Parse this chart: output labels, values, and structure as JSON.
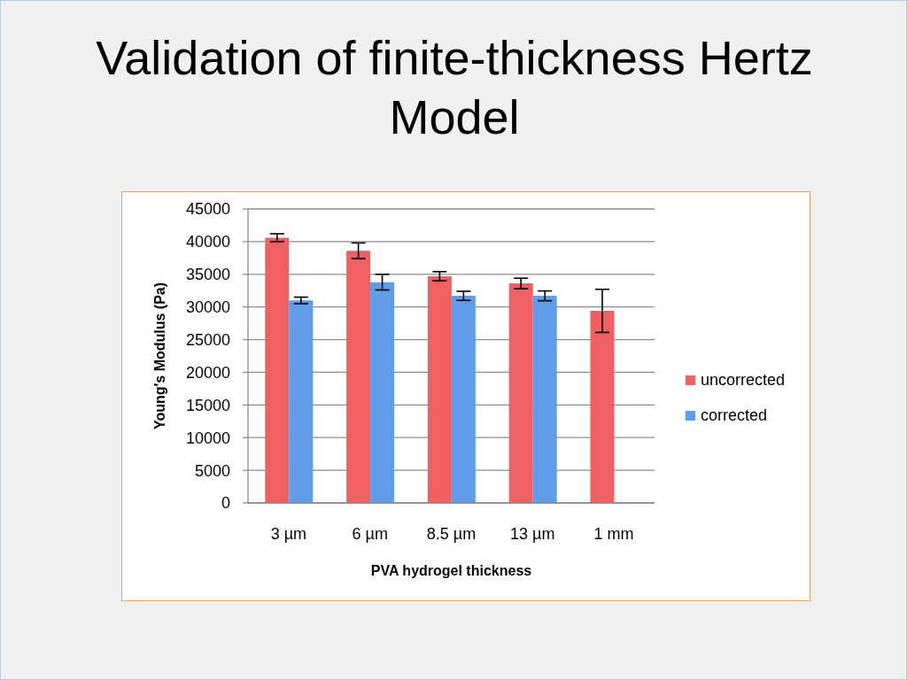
{
  "chart_data": {
    "type": "bar",
    "title": "Validation of finite-thickness Hertz Model",
    "xlabel": "PVA hydrogel thickness",
    "ylabel": "Young's Modulus (Pa)",
    "categories": [
      "3 µm",
      "6 µm",
      "8.5 µm",
      "13 µm",
      "1 mm"
    ],
    "series": [
      {
        "name": "uncorrected",
        "color": "#f06060",
        "values": [
          40600,
          38600,
          34700,
          33600,
          29400
        ],
        "errors": [
          600,
          1200,
          700,
          800,
          3300
        ]
      },
      {
        "name": "corrected",
        "color": "#609ce8",
        "values": [
          31000,
          33800,
          31700,
          31700,
          null
        ],
        "errors": [
          500,
          1200,
          700,
          750,
          null
        ]
      }
    ],
    "ylim": [
      0,
      45000
    ],
    "yticks": [
      0,
      5000,
      10000,
      15000,
      20000,
      25000,
      30000,
      35000,
      40000,
      45000
    ],
    "grid": "y",
    "legend": "right"
  }
}
